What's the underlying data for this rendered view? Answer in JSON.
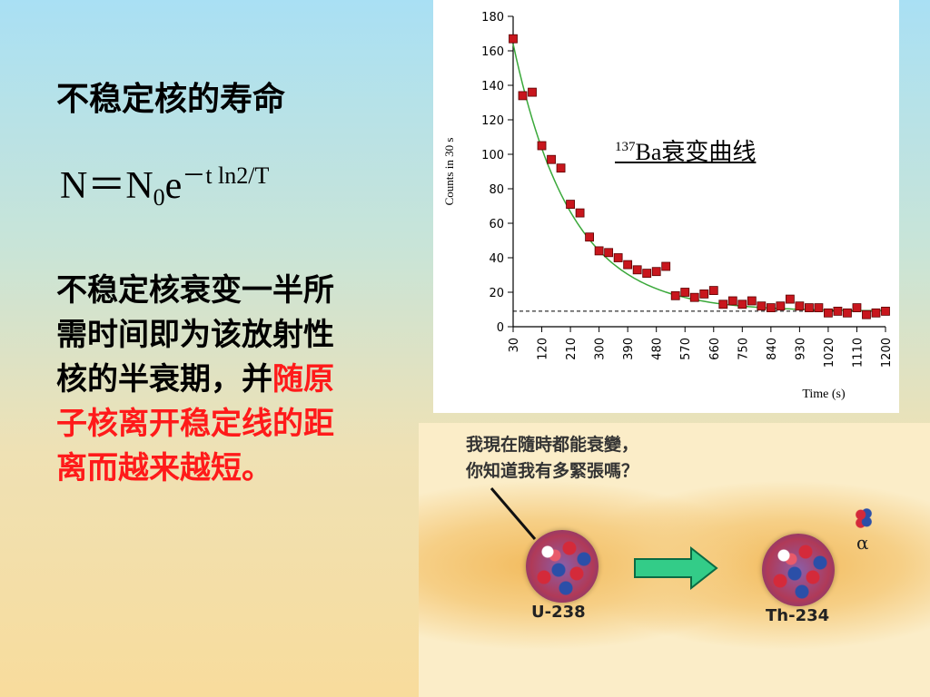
{
  "heading": "不稳定核的寿命",
  "formula": {
    "base": "N＝N",
    "sub": "0",
    "exp_base": "e",
    "sup": "－t ln2/T"
  },
  "body": {
    "black": "不稳定核衰变一半所需时间即为该放射性核的半衰期，并",
    "red": "随原子核离开稳定线的距离而越来越短。"
  },
  "chart_data": {
    "type": "scatter",
    "title": "",
    "label_sup": "137",
    "label_text": "Ba衰变曲线",
    "xlabel": "Time (s)",
    "ylabel": "Counts in 30 s",
    "xlim": [
      30,
      1200
    ],
    "ylim": [
      0,
      180
    ],
    "x_ticks": [
      30,
      120,
      210,
      300,
      390,
      480,
      570,
      660,
      750,
      840,
      930,
      1020,
      1110,
      1200
    ],
    "y_ticks": [
      0,
      20,
      40,
      60,
      80,
      100,
      120,
      140,
      160,
      180
    ],
    "background_level": 9,
    "points": [
      [
        30,
        167
      ],
      [
        60,
        134
      ],
      [
        90,
        136
      ],
      [
        120,
        105
      ],
      [
        150,
        97
      ],
      [
        180,
        92
      ],
      [
        210,
        71
      ],
      [
        240,
        66
      ],
      [
        270,
        52
      ],
      [
        300,
        44
      ],
      [
        330,
        43
      ],
      [
        360,
        40
      ],
      [
        390,
        36
      ],
      [
        420,
        33
      ],
      [
        450,
        31
      ],
      [
        480,
        32
      ],
      [
        510,
        35
      ],
      [
        540,
        18
      ],
      [
        570,
        20
      ],
      [
        600,
        17
      ],
      [
        630,
        19
      ],
      [
        660,
        21
      ],
      [
        690,
        13
      ],
      [
        720,
        15
      ],
      [
        750,
        13
      ],
      [
        780,
        15
      ],
      [
        810,
        12
      ],
      [
        840,
        11
      ],
      [
        870,
        12
      ],
      [
        900,
        16
      ],
      [
        930,
        12
      ],
      [
        960,
        11
      ],
      [
        990,
        11
      ],
      [
        1020,
        8
      ],
      [
        1050,
        9
      ],
      [
        1080,
        8
      ],
      [
        1110,
        11
      ],
      [
        1140,
        7
      ],
      [
        1170,
        8
      ],
      [
        1200,
        9
      ]
    ],
    "fit": {
      "model": "exponential",
      "A": 155,
      "k": 0.0055,
      "offset": 9,
      "color": "#3aa83a"
    },
    "marker_color": "#c8161d"
  },
  "illustration": {
    "bubble_line1": "我現在隨時都能衰變，",
    "bubble_line2": "你知道我有多緊張嗎？",
    "parent_label": "U-238",
    "daughter_label": "Th-234",
    "alpha_label": "α"
  }
}
